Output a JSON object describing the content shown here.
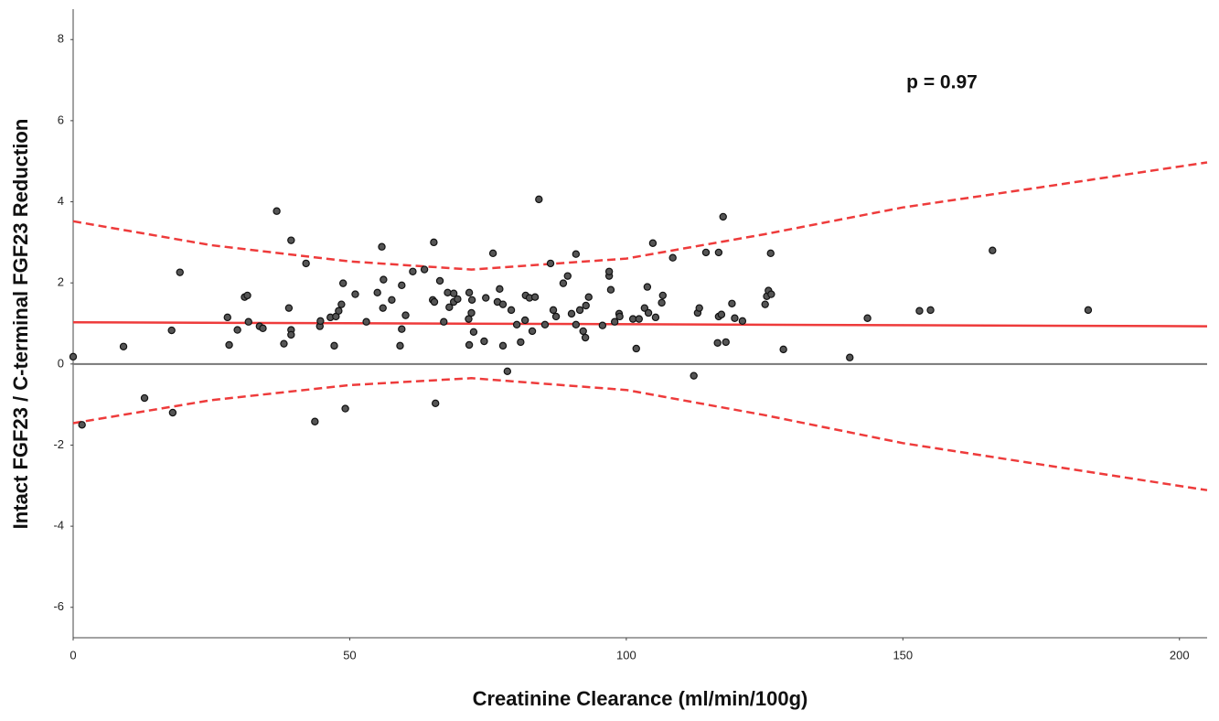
{
  "chart_data": {
    "type": "scatter",
    "y_label": "Intact FGF23 / C-terminal FGF23 Reduction",
    "x_label": "Creatinine Clearance (ml/min/100g)",
    "annotation": "p = 0.97",
    "xlim": [
      0,
      205
    ],
    "ylim": [
      -6.75,
      8.75
    ],
    "xticks": [
      0,
      50,
      100,
      150,
      200
    ],
    "yticks": [
      -6,
      -4,
      -2,
      0,
      2,
      4,
      6,
      8
    ],
    "grid": false,
    "point_color": "#555555",
    "x": [
      0,
      1.6,
      9.1,
      12.9,
      17.8,
      18,
      19.3,
      27.9,
      28.2,
      29.7,
      31,
      31.5,
      31.7,
      33.7,
      34.3,
      36.8,
      38.1,
      39,
      39.4,
      39.4,
      39.4,
      42.1,
      43.7,
      44.6,
      44.7,
      46.5,
      47.2,
      47.5,
      48,
      48.5,
      48.8,
      49.2,
      51,
      53,
      55,
      55.8,
      56,
      56.1,
      57.6,
      59.1,
      59.4,
      59.4,
      60.1,
      61.4,
      63.5,
      65,
      65.2,
      65.3,
      65.5,
      66.3,
      67,
      67.7,
      68,
      68.8,
      68.8,
      69.5,
      71.5,
      71.6,
      71.6,
      72,
      72.1,
      72.4,
      74.3,
      74.6,
      75.9,
      76.7,
      77.1,
      77.7,
      77.7,
      78.5,
      79.2,
      80.2,
      80.9,
      81.7,
      81.8,
      82.5,
      83,
      83.5,
      84.2,
      85.3,
      86.3,
      86.8,
      87.3,
      88.6,
      89.4,
      90.1,
      90.9,
      90.9,
      91.6,
      92.2,
      92.6,
      92.7,
      93.2,
      95.7,
      96.9,
      96.9,
      97.2,
      97.9,
      98.7,
      98.8,
      101.2,
      101.8,
      102.3,
      103.3,
      103.8,
      104,
      104.8,
      105.3,
      106.4,
      106.6,
      108.4,
      112.2,
      112.9,
      113.2,
      114.4,
      116.5,
      116.7,
      116.7,
      117.2,
      117.5,
      118,
      119.1,
      119.6,
      121,
      125.1,
      125.4,
      125.7,
      126.1,
      126.2,
      128.4,
      140.4,
      143.6,
      153,
      155,
      166.2,
      183.5
    ],
    "y": [
      0.18,
      -1.5,
      0.43,
      -0.84,
      0.83,
      -1.2,
      2.26,
      1.15,
      0.47,
      0.84,
      1.65,
      1.69,
      1.04,
      0.93,
      0.88,
      3.77,
      0.5,
      1.38,
      3.05,
      0.84,
      0.72,
      2.48,
      -1.42,
      0.93,
      1.06,
      1.15,
      0.45,
      1.17,
      1.31,
      1.47,
      1.99,
      -1.1,
      1.72,
      1.04,
      1.76,
      2.89,
      1.38,
      2.08,
      1.58,
      0.45,
      1.94,
      0.86,
      1.2,
      2.28,
      2.33,
      1.58,
      3.0,
      1.53,
      -0.97,
      2.05,
      1.04,
      1.76,
      1.4,
      1.74,
      1.53,
      1.6,
      1.11,
      1.76,
      0.47,
      1.26,
      1.58,
      0.79,
      0.56,
      1.63,
      2.73,
      1.53,
      1.85,
      0.45,
      1.47,
      -0.18,
      1.33,
      0.97,
      0.54,
      1.08,
      1.69,
      1.63,
      0.81,
      1.65,
      4.06,
      0.97,
      2.48,
      1.33,
      1.17,
      1.99,
      2.17,
      1.24,
      2.71,
      0.97,
      1.33,
      0.81,
      0.65,
      1.44,
      1.65,
      0.95,
      2.17,
      2.28,
      1.83,
      1.04,
      1.24,
      1.17,
      1.11,
      0.38,
      1.11,
      1.38,
      1.9,
      1.26,
      2.98,
      1.15,
      1.51,
      1.69,
      2.62,
      -0.29,
      1.26,
      1.38,
      2.75,
      0.52,
      1.17,
      2.75,
      1.22,
      3.63,
      0.54,
      1.49,
      1.13,
      1.06,
      1.47,
      1.67,
      1.81,
      2.73,
      1.72,
      0.36,
      0.16,
      1.13,
      1.31,
      1.33,
      2.8,
      1.33
    ],
    "reference_line": {
      "value": 0,
      "color": "#777777"
    },
    "lines": [
      {
        "x": [
          0,
          205
        ],
        "values": [
          1.03,
          0.93
        ],
        "color": "#ee3b3b",
        "dashed": false
      },
      {
        "x": [
          0,
          25,
          50,
          72,
          100,
          125,
          150,
          175,
          205
        ],
        "values": [
          3.52,
          2.93,
          2.53,
          2.33,
          2.6,
          3.2,
          3.86,
          4.36,
          4.97
        ],
        "color": "#ee3b3b",
        "dashed": true
      },
      {
        "x": [
          0,
          25,
          50,
          72,
          100,
          125,
          150,
          175,
          205
        ],
        "values": [
          -1.46,
          -0.89,
          -0.52,
          -0.35,
          -0.64,
          -1.26,
          -1.95,
          -2.48,
          -3.11
        ],
        "color": "#ee3b3b",
        "dashed": true
      }
    ]
  }
}
